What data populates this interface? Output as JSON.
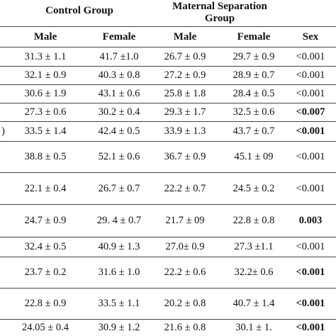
{
  "header": {
    "control_group": "Control Group",
    "maternal_group_line1": "Maternal Separation",
    "maternal_group_line2": "Group",
    "sub": [
      "Male",
      "Female",
      "Male",
      "Female",
      "Sex"
    ]
  },
  "rows": [
    {
      "label": "",
      "cells": [
        "31.3 ± 1.1",
        "41.7 ±1.0",
        "26.7 ± 0.9",
        "29.7 ± 0.9",
        "<0.001"
      ],
      "sex_bold": false
    },
    {
      "label": "",
      "cells": [
        "32.1 ± 0.9",
        "40.3 ± 0.8",
        "27.2 ± 0.9",
        "28.9 ± 0.7",
        "<0.001"
      ],
      "sex_bold": false
    },
    {
      "label": "",
      "cells": [
        "30.6 ± 1.9",
        "43.1 ± 0.6",
        "25.8 ± 1.8",
        "28.4 ± 0.5",
        "<0.001"
      ],
      "sex_bold": false
    },
    {
      "label": "",
      "cells": [
        "27.3 ± 0.6",
        "30.2 ± 0.4",
        "29.3 ± 1.7",
        "32.5 ± 0.6",
        "<0.007"
      ],
      "sex_bold": true
    },
    {
      "label": ")",
      "cells": [
        "33.5 ± 1.4",
        "42.4 ± 0.5",
        "33.9 ± 1.3",
        "43.7 ± 0.7",
        "<0.001"
      ],
      "sex_bold": true
    },
    {
      "label": "",
      "cells": [
        "38.8 ± 0.5",
        "52.1 ± 0.6",
        "36.7 ± 0.9",
        "45.1 ± 09",
        "<0.001"
      ],
      "sex_bold": false
    },
    {
      "label": "",
      "cells": [
        "22.1 ± 0.4",
        "26.7 ± 0.7",
        "22.2 ± 0.7",
        "24.5 ± 0.2",
        "<0.001"
      ],
      "sex_bold": false
    },
    {
      "label": "",
      "cells": [
        "24.7 ± 0.9",
        "29. 4 ± 0.7",
        "21.7 ± 09",
        "22.8 ± 0.8",
        "0.003"
      ],
      "sex_bold": true
    },
    {
      "label": "",
      "cells": [
        "32.4 ± 0.5",
        "40.9 ± 1.3",
        "27.0± 0.9",
        "27.3 ±1.1",
        "<0.001"
      ],
      "sex_bold": false
    },
    {
      "label": "",
      "cells": [
        "23.7 ± 0.2",
        "31.6 ± 1.0",
        "22.2 ± 0.6",
        "32.2± 0.6",
        "<0.001"
      ],
      "sex_bold": true
    },
    {
      "label": "",
      "cells": [
        "22.8 ± 0.9",
        "33.5 ± 1.1",
        "20.2 ± 0.8",
        "40.7 ± 1.4",
        "<0.001"
      ],
      "sex_bold": true
    },
    {
      "label": "",
      "cells": [
        "24.05 ± 0.4",
        "30.9 ± 1.2",
        "21.6 ± 0.8",
        "30.1 ± 1.",
        "<0.001"
      ],
      "sex_bold": true
    }
  ]
}
